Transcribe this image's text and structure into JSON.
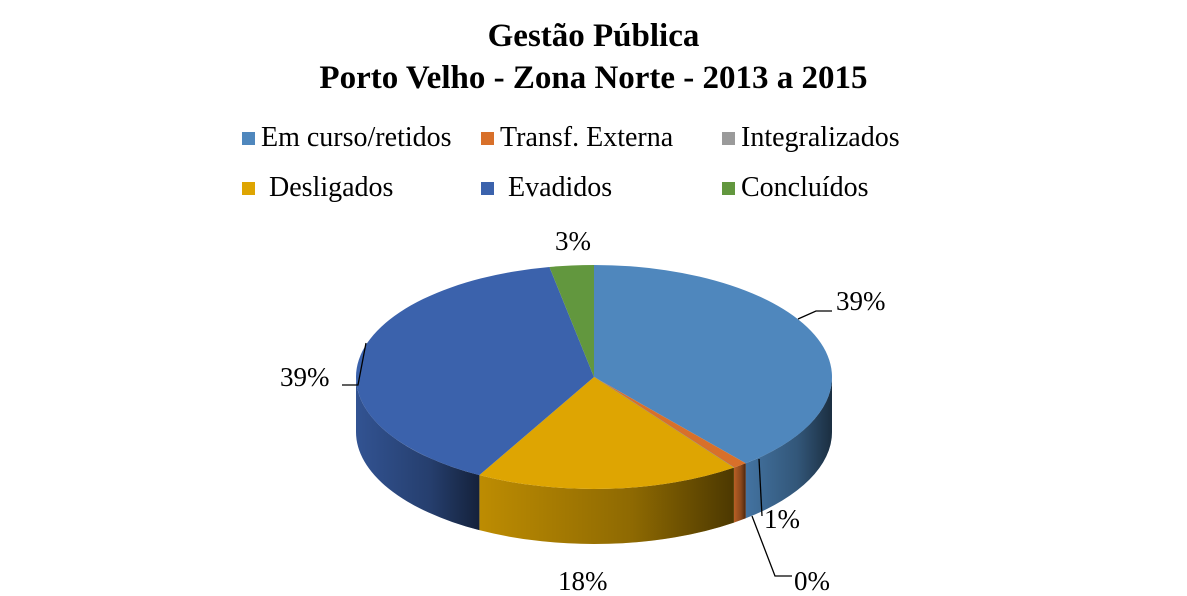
{
  "chart_data": {
    "type": "pie",
    "title": "Gestão Pública",
    "subtitle": "Porto Velho - Zona Norte - 2013 a 2015",
    "categories": [
      "Em curso/retidos",
      "Transf. Externa",
      "Integralizados",
      "Desligados",
      "Evadidos",
      "Concluídos"
    ],
    "values": [
      39,
      1,
      0,
      18,
      39,
      3
    ],
    "data_labels": [
      "39%",
      "1%",
      "0%",
      "18%",
      "39%",
      "3%"
    ],
    "colors": [
      "#4f87bd",
      "#d8702a",
      "#9a9a9a",
      "#dea502",
      "#3b62ac",
      "#62973e"
    ],
    "legend_position": "top"
  }
}
